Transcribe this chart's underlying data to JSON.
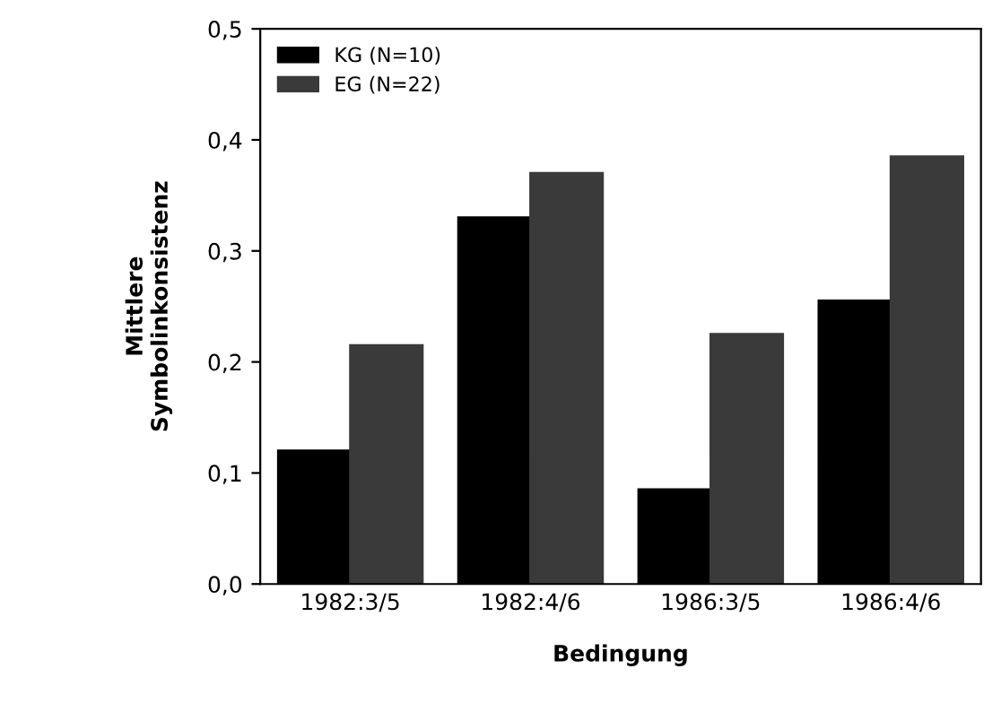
{
  "chart_data": {
    "type": "bar",
    "xlabel": "Bedingung",
    "ylabel": "Mittlere\nSymbolinkonsistenz",
    "categories": [
      "1982:3/5",
      "1982:4/6",
      "1986:3/5",
      "1986:4/6"
    ],
    "series": [
      {
        "name": "KG (N=10)",
        "color": "#000000",
        "values": [
          0.12,
          0.33,
          0.085,
          0.255
        ]
      },
      {
        "name": "EG (N=22)",
        "color": "#3a3a3a",
        "values": [
          0.215,
          0.37,
          0.225,
          0.385
        ]
      }
    ],
    "ylim": [
      0,
      0.5
    ],
    "yticks": [
      {
        "value": 0,
        "label": "0,0"
      },
      {
        "value": 0.1,
        "label": "0,1"
      },
      {
        "value": 0.2,
        "label": "0,2"
      },
      {
        "value": 0.3,
        "label": "0,3"
      },
      {
        "value": 0.4,
        "label": "0,4"
      },
      {
        "value": 0.5,
        "label": "0,5"
      }
    ],
    "legend": "top left",
    "grid": false
  }
}
